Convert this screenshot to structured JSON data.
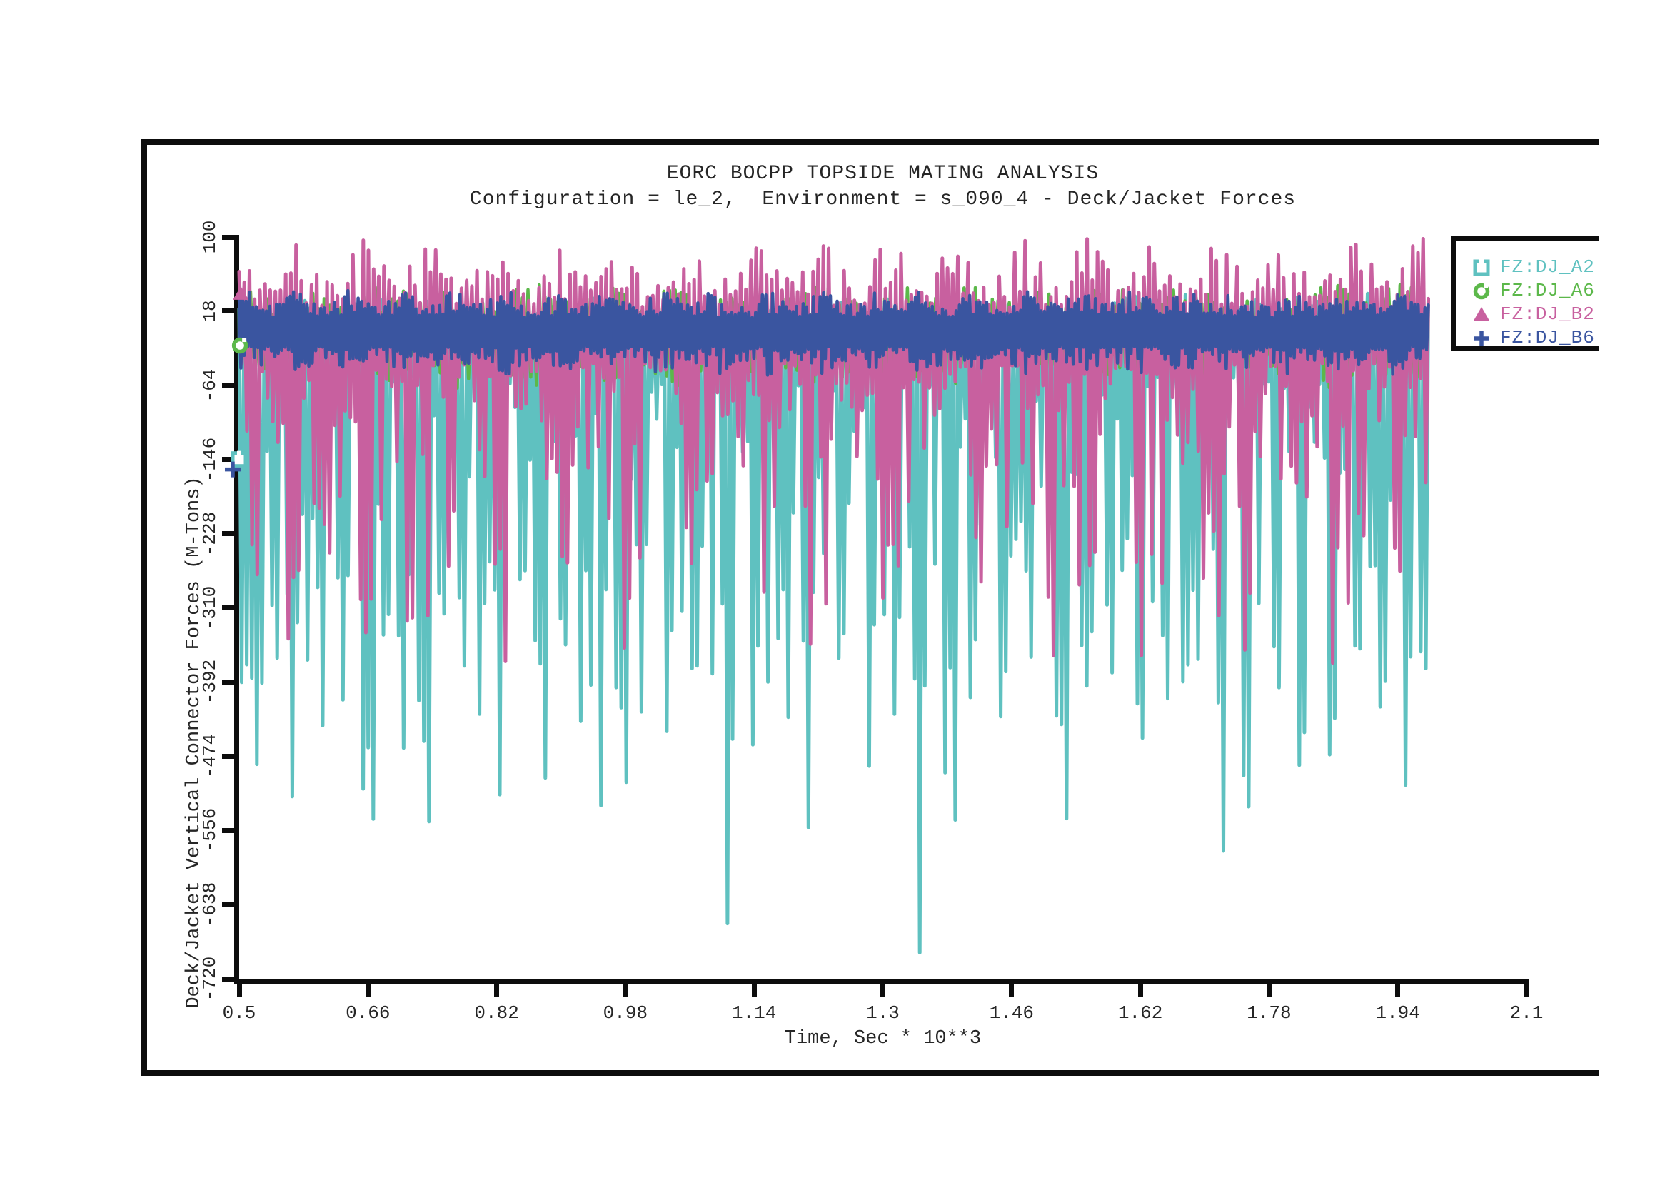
{
  "window": {
    "background": "#ffffff",
    "frame_color": "#0d0d0d"
  },
  "chart_data": {
    "type": "line",
    "title": "EORC BOCPP TOPSIDE MATING ANALYSIS",
    "subtitle": "Configuration = le_2,  Environment = s_090_4 - Deck/Jacket Forces",
    "xlabel": "Time, Sec * 10**3",
    "ylabel": "Deck/Jacket Vertical Connector Forces (M-Tons)",
    "xlim": [
      0.5,
      2.1
    ],
    "ylim": [
      -720,
      100
    ],
    "xticks": [
      0.5,
      0.66,
      0.82,
      0.98,
      1.14,
      1.3,
      1.46,
      1.62,
      1.78,
      1.94,
      2.1
    ],
    "xtick_labels": [
      "0.5",
      "0.66",
      "0.82",
      "0.98",
      "1.14",
      "1.3",
      "1.46",
      "1.62",
      "1.78",
      "1.94",
      "2.1"
    ],
    "yticks": [
      100,
      18,
      -64,
      -146,
      -228,
      -310,
      -392,
      -474,
      -556,
      -638,
      -720
    ],
    "ytick_labels": [
      "100",
      "18",
      "-64",
      "-146",
      "-228",
      "-310",
      "-392",
      "-474",
      "-556",
      "-638",
      "-720"
    ],
    "grid": false,
    "legend_position": "top-right",
    "axis_color": "#0d0d0d",
    "text_color": "#262626",
    "data_t_start": 0.5,
    "data_t_end": 1.978,
    "series": [
      {
        "name": "FZ:DJ_A2",
        "color": "#5fc1c0",
        "marker": "square",
        "start_marker": {
          "t": 0.5,
          "value": -146
        },
        "synthesis": {
          "seed": 11,
          "steps": 470,
          "center": 0,
          "top_base": 8,
          "top_var": 30,
          "bot_base": 55,
          "bot_var": 520,
          "shape": 2.6,
          "packet_period": 0.073,
          "packet_phase": 0.4,
          "packet_min": 0.45,
          "width": 5
        },
        "spikes": [
          [
            0.506,
            -489
          ],
          [
            0.524,
            -560
          ],
          [
            0.545,
            -430
          ],
          [
            0.566,
            -520
          ],
          [
            0.585,
            -370
          ],
          [
            0.603,
            -465
          ],
          [
            0.628,
            -440
          ],
          [
            0.658,
            -556
          ],
          [
            0.682,
            -420
          ],
          [
            0.703,
            -515
          ],
          [
            0.727,
            -556
          ],
          [
            0.752,
            -390
          ],
          [
            0.778,
            -430
          ],
          [
            0.8,
            -468
          ],
          [
            0.824,
            -520
          ],
          [
            0.852,
            -350
          ],
          [
            0.879,
            -556
          ],
          [
            0.903,
            -430
          ],
          [
            0.925,
            -450
          ],
          [
            0.952,
            -400
          ],
          [
            0.979,
            -590
          ],
          [
            1.0,
            -425
          ],
          [
            1.034,
            -452
          ],
          [
            1.066,
            -480
          ],
          [
            1.108,
            -712
          ],
          [
            1.14,
            -520
          ],
          [
            1.172,
            -405
          ],
          [
            1.207,
            -575
          ],
          [
            1.248,
            -450
          ],
          [
            1.284,
            -520
          ],
          [
            1.316,
            -478
          ],
          [
            1.346,
            -695
          ],
          [
            1.379,
            -555
          ],
          [
            1.411,
            -482
          ],
          [
            1.449,
            -518
          ],
          [
            1.483,
            -400
          ],
          [
            1.519,
            -555
          ],
          [
            1.551,
            -478
          ],
          [
            1.583,
            -440
          ],
          [
            1.62,
            -556
          ],
          [
            1.652,
            -480
          ],
          [
            1.69,
            -420
          ],
          [
            1.722,
            -635
          ],
          [
            1.754,
            -558
          ],
          [
            1.79,
            -480
          ],
          [
            1.822,
            -516
          ],
          [
            1.858,
            -578
          ],
          [
            1.89,
            -452
          ],
          [
            1.921,
            -518
          ],
          [
            1.951,
            -556
          ],
          [
            1.972,
            -470
          ]
        ]
      },
      {
        "name": "FZ:DJ_A6",
        "color": "#5cb84a",
        "marker": "circle",
        "start_marker": {
          "t": 0.501,
          "value": -20
        },
        "synthesis": {
          "seed": 22,
          "steps": 420,
          "center": -8,
          "top_base": 22,
          "top_var": 36,
          "bot_base": 20,
          "bot_var": 40,
          "shape": 1.1,
          "packet_period": 0.09,
          "packet_phase": 1.2,
          "packet_min": 0.5,
          "width": 4.5
        },
        "spikes": []
      },
      {
        "name": "FZ:DJ_B2",
        "color": "#c8609f",
        "marker": "triangle",
        "start_marker": {
          "t": 0.502,
          "value": 37
        },
        "synthesis": {
          "seed": 33,
          "steps": 460,
          "center": 0,
          "top_base": 22,
          "top_var": 78,
          "bot_base": 40,
          "bot_var": 290,
          "shape": 2.0,
          "packet_period": 0.082,
          "packet_phase": 2.3,
          "packet_min": 0.4,
          "width": 5
        },
        "spikes": [
          [
            0.52,
            -330
          ],
          [
            0.563,
            -398
          ],
          [
            0.61,
            -300
          ],
          [
            0.66,
            -410
          ],
          [
            0.712,
            -415
          ],
          [
            0.762,
            -300
          ],
          [
            0.83,
            -395
          ],
          [
            0.905,
            -330
          ],
          [
            0.98,
            -388
          ],
          [
            1.06,
            -310
          ],
          [
            1.21,
            -352
          ],
          [
            1.3,
            -300
          ],
          [
            1.42,
            -330
          ],
          [
            1.51,
            -425
          ],
          [
            1.62,
            -400
          ],
          [
            1.7,
            -310
          ],
          [
            1.752,
            -418
          ],
          [
            1.86,
            -395
          ],
          [
            1.94,
            -330
          ]
        ]
      },
      {
        "name": "FZ:DJ_B6",
        "color": "#3a55a0",
        "marker": "plus",
        "start_marker": {
          "t": 0.492,
          "value": -157
        },
        "synthesis": {
          "seed": 44,
          "steps": 700,
          "center": -7,
          "top_base": 18,
          "top_var": 30,
          "bot_base": 14,
          "bot_var": 32,
          "shape": 1.2,
          "packet_period": 0.065,
          "packet_phase": 0.9,
          "packet_min": 0.5,
          "width": 4.5
        },
        "spikes": []
      }
    ]
  }
}
